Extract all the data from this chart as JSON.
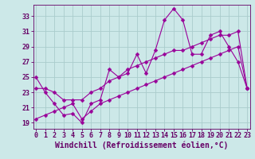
{
  "xlabel": "Windchill (Refroidissement éolien,°C)",
  "background_color": "#cce8e8",
  "line_color": "#990099",
  "grid_color": "#aacccc",
  "x_ticks": [
    0,
    1,
    2,
    3,
    4,
    5,
    6,
    7,
    8,
    9,
    10,
    11,
    12,
    13,
    14,
    15,
    16,
    17,
    18,
    19,
    20,
    21,
    22,
    23
  ],
  "y_ticks": [
    19,
    21,
    23,
    25,
    27,
    29,
    31,
    33
  ],
  "xlim": [
    -0.3,
    23.3
  ],
  "ylim": [
    18.2,
    34.5
  ],
  "series1_x": [
    0,
    1,
    2,
    3,
    4,
    5,
    6,
    7,
    8,
    9,
    10,
    11,
    12,
    13,
    14,
    15,
    16,
    17,
    18,
    19,
    20,
    21,
    22,
    23
  ],
  "series1_y": [
    25.0,
    23.0,
    21.5,
    20.0,
    20.2,
    19.0,
    21.5,
    22.0,
    26.0,
    25.0,
    25.5,
    28.0,
    25.5,
    28.5,
    32.5,
    34.0,
    32.5,
    28.0,
    28.0,
    30.5,
    31.0,
    29.0,
    27.0,
    23.5
  ],
  "series2_x": [
    0,
    1,
    2,
    3,
    4,
    5,
    6,
    7,
    8,
    9,
    10,
    11,
    12,
    13,
    14,
    15,
    16,
    17,
    18,
    19,
    20,
    21,
    22,
    23
  ],
  "series2_y": [
    23.5,
    23.5,
    23.0,
    22.0,
    22.0,
    22.0,
    23.0,
    23.5,
    24.5,
    25.0,
    26.0,
    26.5,
    27.0,
    27.5,
    28.0,
    28.5,
    28.5,
    29.0,
    29.5,
    30.0,
    30.5,
    30.5,
    31.0,
    23.5
  ],
  "series3_x": [
    0,
    1,
    2,
    3,
    4,
    5,
    6,
    7,
    8,
    9,
    10,
    11,
    12,
    13,
    14,
    15,
    16,
    17,
    18,
    19,
    20,
    21,
    22,
    23
  ],
  "series3_y": [
    19.5,
    20.0,
    20.5,
    21.0,
    21.5,
    19.5,
    20.5,
    21.5,
    22.0,
    22.5,
    23.0,
    23.5,
    24.0,
    24.5,
    25.0,
    25.5,
    26.0,
    26.5,
    27.0,
    27.5,
    28.0,
    28.5,
    29.0,
    23.5
  ],
  "font_color": "#660066",
  "tick_fontsize": 6,
  "label_fontsize": 7,
  "marker_size": 2.5,
  "line_width": 0.8
}
